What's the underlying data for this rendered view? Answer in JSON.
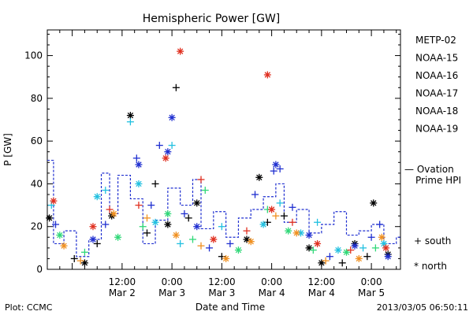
{
  "chart_data": {
    "type": "scatter",
    "title": "Hemispheric Power [GW]",
    "ylabel": "P [GW]",
    "xlabel": "Date and Time",
    "ylim": [
      0,
      112
    ],
    "xlim": [
      "2013-03-01 18:00",
      "2013-03-05 07:00"
    ],
    "yticks": [
      0,
      20,
      40,
      60,
      80,
      100
    ],
    "xticks": [
      {
        "time": "2013-03-02 12:00",
        "line1": "12:00",
        "line2": "Mar 2"
      },
      {
        "time": "2013-03-03 00:00",
        "line1": "0:00",
        "line2": "Mar 3"
      },
      {
        "time": "2013-03-03 12:00",
        "line1": "12:00",
        "line2": "Mar 3"
      },
      {
        "time": "2013-03-04 00:00",
        "line1": "0:00",
        "line2": "Mar 4"
      },
      {
        "time": "2013-03-04 12:00",
        "line1": "12:00",
        "line2": "Mar 4"
      },
      {
        "time": "2013-03-05 00:00",
        "line1": "0:00",
        "line2": "Mar 5"
      }
    ],
    "series": [
      {
        "name": "METP-02",
        "color": "#000000",
        "points": [
          {
            "x": "2013-03-01 18:30",
            "y": 24,
            "m": "north"
          },
          {
            "x": "2013-03-02 00:30",
            "y": 5,
            "m": "south"
          },
          {
            "x": "2013-03-02 03:00",
            "y": 3,
            "m": "north"
          },
          {
            "x": "2013-03-02 06:00",
            "y": 12,
            "m": "south"
          },
          {
            "x": "2013-03-02 09:30",
            "y": 25,
            "m": "north"
          },
          {
            "x": "2013-03-02 14:00",
            "y": 72,
            "m": "north"
          },
          {
            "x": "2013-03-02 18:00",
            "y": 17,
            "m": "south"
          },
          {
            "x": "2013-03-02 20:00",
            "y": 40,
            "m": "south"
          },
          {
            "x": "2013-03-02 23:00",
            "y": 21,
            "m": "north"
          },
          {
            "x": "2013-03-03 01:00",
            "y": 85,
            "m": "south"
          },
          {
            "x": "2013-03-03 04:00",
            "y": 24,
            "m": "south"
          },
          {
            "x": "2013-03-03 06:00",
            "y": 31,
            "m": "north"
          },
          {
            "x": "2013-03-03 12:00",
            "y": 6,
            "m": "south"
          },
          {
            "x": "2013-03-03 18:00",
            "y": 14,
            "m": "north"
          },
          {
            "x": "2013-03-03 21:00",
            "y": 43,
            "m": "north"
          },
          {
            "x": "2013-03-03 23:00",
            "y": 22,
            "m": "south"
          },
          {
            "x": "2013-03-04 03:00",
            "y": 25,
            "m": "south"
          },
          {
            "x": "2013-03-04 09:00",
            "y": 10,
            "m": "north"
          },
          {
            "x": "2013-03-04 12:00",
            "y": 3,
            "m": "north"
          },
          {
            "x": "2013-03-04 17:00",
            "y": 3,
            "m": "south"
          },
          {
            "x": "2013-03-04 20:00",
            "y": 12,
            "m": "north"
          },
          {
            "x": "2013-03-04 23:00",
            "y": 6,
            "m": "south"
          },
          {
            "x": "2013-03-05 00:30",
            "y": 31,
            "m": "north"
          },
          {
            "x": "2013-03-05 04:00",
            "y": 7,
            "m": "north"
          }
        ]
      },
      {
        "name": "NOAA-15",
        "color": "#1f2fd0",
        "points": [
          {
            "x": "2013-03-01 20:00",
            "y": 21,
            "m": "south"
          },
          {
            "x": "2013-03-02 05:00",
            "y": 14,
            "m": "north"
          },
          {
            "x": "2013-03-02 08:00",
            "y": 21,
            "m": "south"
          },
          {
            "x": "2013-03-02 15:30",
            "y": 52,
            "m": "south"
          },
          {
            "x": "2013-03-02 16:00",
            "y": 49,
            "m": "north"
          },
          {
            "x": "2013-03-02 19:00",
            "y": 30,
            "m": "south"
          },
          {
            "x": "2013-03-02 21:00",
            "y": 58,
            "m": "south"
          },
          {
            "x": "2013-03-02 23:00",
            "y": 55,
            "m": "north"
          },
          {
            "x": "2013-03-03 00:00",
            "y": 71,
            "m": "north"
          },
          {
            "x": "2013-03-03 03:00",
            "y": 26,
            "m": "south"
          },
          {
            "x": "2013-03-03 06:00",
            "y": 20,
            "m": "north"
          },
          {
            "x": "2013-03-03 09:00",
            "y": 10,
            "m": "south"
          },
          {
            "x": "2013-03-03 14:00",
            "y": 12,
            "m": "south"
          },
          {
            "x": "2013-03-03 20:00",
            "y": 35,
            "m": "south"
          },
          {
            "x": "2013-03-04 00:30",
            "y": 46,
            "m": "south"
          },
          {
            "x": "2013-03-04 01:00",
            "y": 49,
            "m": "north"
          },
          {
            "x": "2013-03-04 02:00",
            "y": 47,
            "m": "south"
          },
          {
            "x": "2013-03-04 05:00",
            "y": 29,
            "m": "south"
          },
          {
            "x": "2013-03-04 09:00",
            "y": 16,
            "m": "north"
          },
          {
            "x": "2013-03-04 14:00",
            "y": 6,
            "m": "south"
          },
          {
            "x": "2013-03-04 20:00",
            "y": 11,
            "m": "north"
          },
          {
            "x": "2013-03-05 00:00",
            "y": 15,
            "m": "south"
          },
          {
            "x": "2013-03-05 02:00",
            "y": 21,
            "m": "south"
          },
          {
            "x": "2013-03-05 04:00",
            "y": 6,
            "m": "north"
          }
        ]
      },
      {
        "name": "NOAA-16",
        "color": "#22c0e0",
        "points": [
          {
            "x": "2013-03-01 19:00",
            "y": 30,
            "m": "south"
          },
          {
            "x": "2013-03-02 06:00",
            "y": 34,
            "m": "north"
          },
          {
            "x": "2013-03-02 08:00",
            "y": 37,
            "m": "south"
          },
          {
            "x": "2013-03-02 14:00",
            "y": 69,
            "m": "south"
          },
          {
            "x": "2013-03-02 16:00",
            "y": 40,
            "m": "north"
          },
          {
            "x": "2013-03-02 20:00",
            "y": 22,
            "m": "north"
          },
          {
            "x": "2013-03-03 00:00",
            "y": 58,
            "m": "south"
          },
          {
            "x": "2013-03-03 02:00",
            "y": 12,
            "m": "south"
          },
          {
            "x": "2013-03-03 12:00",
            "y": 20,
            "m": "south"
          },
          {
            "x": "2013-03-03 22:00",
            "y": 21,
            "m": "north"
          },
          {
            "x": "2013-03-04 02:00",
            "y": 31,
            "m": "south"
          },
          {
            "x": "2013-03-04 07:00",
            "y": 17,
            "m": "north"
          },
          {
            "x": "2013-03-04 11:00",
            "y": 22,
            "m": "south"
          },
          {
            "x": "2013-03-04 16:00",
            "y": 9,
            "m": "north"
          },
          {
            "x": "2013-03-04 22:00",
            "y": 10,
            "m": "south"
          },
          {
            "x": "2013-03-05 03:00",
            "y": 12,
            "m": "north"
          }
        ]
      },
      {
        "name": "NOAA-17",
        "color": "#30d878",
        "points": [
          {
            "x": "2013-03-01 21:00",
            "y": 16,
            "m": "north"
          },
          {
            "x": "2013-03-02 03:00",
            "y": 8,
            "m": "south"
          },
          {
            "x": "2013-03-02 11:00",
            "y": 15,
            "m": "north"
          },
          {
            "x": "2013-03-02 17:00",
            "y": 20,
            "m": "south"
          },
          {
            "x": "2013-03-02 23:00",
            "y": 26,
            "m": "north"
          },
          {
            "x": "2013-03-03 05:00",
            "y": 14,
            "m": "south"
          },
          {
            "x": "2013-03-03 08:00",
            "y": 37,
            "m": "south"
          },
          {
            "x": "2013-03-03 16:00",
            "y": 9,
            "m": "north"
          },
          {
            "x": "2013-03-03 23:00",
            "y": 28,
            "m": "south"
          },
          {
            "x": "2013-03-04 04:00",
            "y": 18,
            "m": "north"
          },
          {
            "x": "2013-03-04 10:00",
            "y": 9,
            "m": "south"
          },
          {
            "x": "2013-03-04 18:00",
            "y": 8,
            "m": "north"
          },
          {
            "x": "2013-03-05 01:00",
            "y": 10,
            "m": "south"
          }
        ]
      },
      {
        "name": "NOAA-18",
        "color": "#f09020",
        "points": [
          {
            "x": "2013-03-01 22:00",
            "y": 11,
            "m": "north"
          },
          {
            "x": "2013-03-02 02:00",
            "y": 4,
            "m": "south"
          },
          {
            "x": "2013-03-02 10:00",
            "y": 26,
            "m": "north"
          },
          {
            "x": "2013-03-02 18:00",
            "y": 24,
            "m": "south"
          },
          {
            "x": "2013-03-03 01:00",
            "y": 16,
            "m": "north"
          },
          {
            "x": "2013-03-03 07:00",
            "y": 11,
            "m": "south"
          },
          {
            "x": "2013-03-03 13:00",
            "y": 5,
            "m": "north"
          },
          {
            "x": "2013-03-03 19:00",
            "y": 13,
            "m": "north"
          },
          {
            "x": "2013-03-04 01:00",
            "y": 25,
            "m": "south"
          },
          {
            "x": "2013-03-04 06:00",
            "y": 17,
            "m": "north"
          },
          {
            "x": "2013-03-04 13:00",
            "y": 4,
            "m": "south"
          },
          {
            "x": "2013-03-04 21:00",
            "y": 5,
            "m": "north"
          },
          {
            "x": "2013-03-05 02:30",
            "y": 15,
            "m": "north"
          }
        ]
      },
      {
        "name": "NOAA-19",
        "color": "#e03020",
        "points": [
          {
            "x": "2013-03-01 19:30",
            "y": 32,
            "m": "north"
          },
          {
            "x": "2013-03-02 05:00",
            "y": 20,
            "m": "north"
          },
          {
            "x": "2013-03-02 09:00",
            "y": 28,
            "m": "south"
          },
          {
            "x": "2013-03-02 16:00",
            "y": 30,
            "m": "south"
          },
          {
            "x": "2013-03-02 22:30",
            "y": 52,
            "m": "north"
          },
          {
            "x": "2013-03-03 02:00",
            "y": 102,
            "m": "north"
          },
          {
            "x": "2013-03-03 07:00",
            "y": 42,
            "m": "south"
          },
          {
            "x": "2013-03-03 10:00",
            "y": 14,
            "m": "north"
          },
          {
            "x": "2013-03-03 18:00",
            "y": 18,
            "m": "south"
          },
          {
            "x": "2013-03-04 00:00",
            "y": 28,
            "m": "north"
          },
          {
            "x": "2013-03-03 23:00",
            "y": 91,
            "m": "north"
          },
          {
            "x": "2013-03-04 05:00",
            "y": 22,
            "m": "south"
          },
          {
            "x": "2013-03-04 11:00",
            "y": 12,
            "m": "north"
          },
          {
            "x": "2013-03-04 19:00",
            "y": 9,
            "m": "south"
          },
          {
            "x": "2013-03-05 03:30",
            "y": 10,
            "m": "north"
          }
        ]
      }
    ],
    "ovation": {
      "name_line1": "— Ovation",
      "name_line2": "Prime HPI",
      "color": "#1f2fd0",
      "steps": [
        {
          "x": "2013-03-01 18:00",
          "y": 51
        },
        {
          "x": "2013-03-01 19:30",
          "y": 12
        },
        {
          "x": "2013-03-01 22:00",
          "y": 18
        },
        {
          "x": "2013-03-02 01:00",
          "y": 6
        },
        {
          "x": "2013-03-02 04:00",
          "y": 14
        },
        {
          "x": "2013-03-02 07:00",
          "y": 45
        },
        {
          "x": "2013-03-02 09:00",
          "y": 26
        },
        {
          "x": "2013-03-02 11:00",
          "y": 44
        },
        {
          "x": "2013-03-02 14:00",
          "y": 33
        },
        {
          "x": "2013-03-02 17:00",
          "y": 12
        },
        {
          "x": "2013-03-02 20:00",
          "y": 23
        },
        {
          "x": "2013-03-02 23:00",
          "y": 38
        },
        {
          "x": "2013-03-03 02:00",
          "y": 30
        },
        {
          "x": "2013-03-03 05:00",
          "y": 42
        },
        {
          "x": "2013-03-03 07:00",
          "y": 19
        },
        {
          "x": "2013-03-03 10:00",
          "y": 27
        },
        {
          "x": "2013-03-03 13:00",
          "y": 15
        },
        {
          "x": "2013-03-03 16:00",
          "y": 24
        },
        {
          "x": "2013-03-03 19:00",
          "y": 28
        },
        {
          "x": "2013-03-03 22:00",
          "y": 34
        },
        {
          "x": "2013-03-04 01:00",
          "y": 40
        },
        {
          "x": "2013-03-04 03:00",
          "y": 22
        },
        {
          "x": "2013-03-04 06:00",
          "y": 28
        },
        {
          "x": "2013-03-04 09:00",
          "y": 17
        },
        {
          "x": "2013-03-04 12:00",
          "y": 21
        },
        {
          "x": "2013-03-04 15:00",
          "y": 27
        },
        {
          "x": "2013-03-04 18:00",
          "y": 16
        },
        {
          "x": "2013-03-04 21:00",
          "y": 18
        },
        {
          "x": "2013-03-05 00:00",
          "y": 21
        },
        {
          "x": "2013-03-05 03:00",
          "y": 12
        },
        {
          "x": "2013-03-05 06:00",
          "y": 15
        }
      ]
    },
    "marker_legend": {
      "south": "+ south",
      "north": "* north"
    }
  },
  "footer": {
    "left": "Plot: CCMC",
    "right": "2013/03/05 06:50:11"
  }
}
